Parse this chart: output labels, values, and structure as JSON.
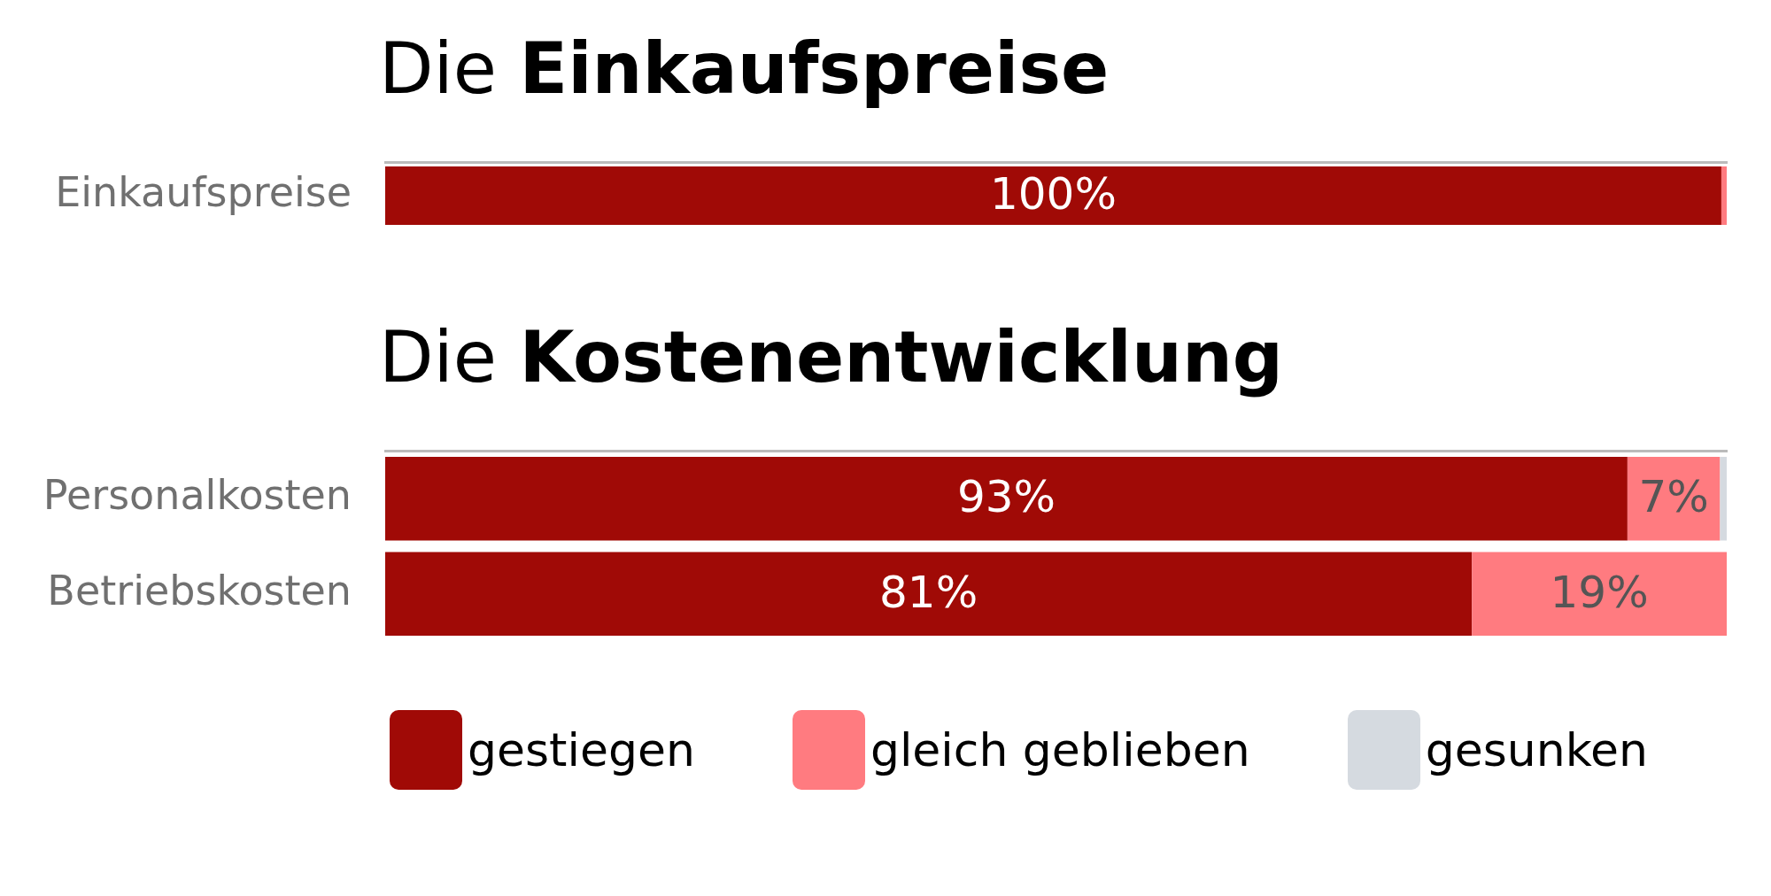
{
  "chart_data": [
    {
      "type": "bar",
      "title": "Die Einkaufspreise",
      "orientation": "horizontal",
      "stacked": true,
      "categories": [
        "Einkaufspreise"
      ],
      "xlim": [
        0,
        100
      ],
      "tick_labels": "y",
      "legend": false,
      "series": [
        {
          "color": "#a00a06",
          "values": [
            99.6
          ],
          "value_labels": [
            "100%"
          ]
        },
        {
          "color": "#ff7b80",
          "values": [
            0.4
          ],
          "value_labels": [
            null
          ]
        }
      ]
    },
    {
      "type": "bar",
      "title": "Die Kostenentwicklung",
      "orientation": "horizontal",
      "stacked": true,
      "categories": [
        "Personalkosten",
        "Betriebskosten"
      ],
      "xlim": [
        0,
        100
      ],
      "tick_labels": "y",
      "legend": "bottom",
      "series": [
        {
          "name": "gestiegen",
          "color": "#a00a06",
          "values": [
            92.6,
            81
          ],
          "value_labels": [
            "93%",
            "81%"
          ]
        },
        {
          "name": "gleich geblieben",
          "color": "#ff7b80",
          "values": [
            6.9,
            19
          ],
          "value_labels": [
            "7%",
            "19%"
          ]
        },
        {
          "name": "gesunken",
          "color": "#d5dae0",
          "values": [
            0.5,
            null
          ],
          "value_labels": [
            null,
            null
          ]
        }
      ]
    }
  ]
}
